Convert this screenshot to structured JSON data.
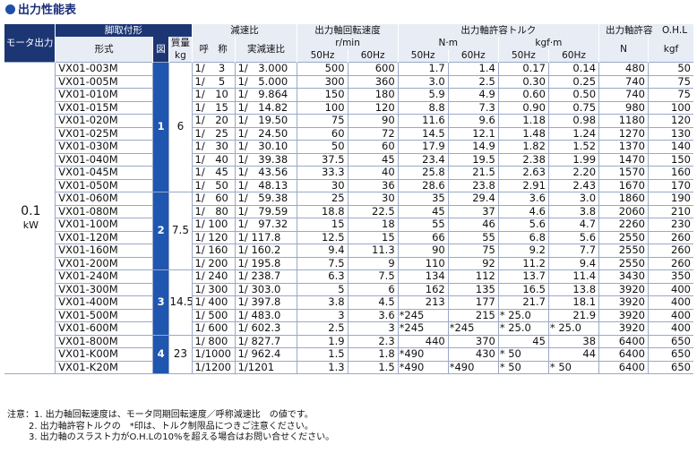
{
  "title": "出力性能表",
  "headers": {
    "motor": "モータ出力",
    "mounting": "脚取付形",
    "model": "形式",
    "fig": "図",
    "mass": "質量",
    "mass_unit": "kg",
    "reduction": "減速比",
    "nominal": "呼　称",
    "actual": "実減速比",
    "speed": "出力軸回転速度",
    "speed_unit": "r/min",
    "torque": "出力軸許容トルク",
    "torque_nm": "N·m",
    "torque_kgf": "kgf·m",
    "ohl": "出力軸許容　O.H.L",
    "ohl_n": "N",
    "ohl_kgf": "kgf",
    "hz50": "50Hz",
    "hz60": "60Hz"
  },
  "motor": {
    "value": "0.1",
    "unit": "kW"
  },
  "groups": [
    {
      "fig": "1",
      "mass": "6",
      "span": 10
    },
    {
      "fig": "2",
      "mass": "7.5",
      "span": 6
    },
    {
      "fig": "3",
      "mass": "14.5",
      "span": 5
    },
    {
      "fig": "4",
      "mass": "23",
      "span": 3
    }
  ],
  "rows": [
    [
      "VX01-003M",
      "1/　 3",
      "1/　3.000",
      "500",
      "600",
      "1.7",
      "1.4",
      "0.17",
      "0.14",
      "480",
      "50"
    ],
    [
      "VX01-005M",
      "1/　 5",
      "1/　5.000",
      "300",
      "360",
      "3.0",
      "2.5",
      "0.30",
      "0.25",
      "740",
      "75"
    ],
    [
      "VX01-010M",
      "1/　10",
      "1/　9.864",
      "150",
      "180",
      "5.9",
      "4.9",
      "0.60",
      "0.50",
      "740",
      "75"
    ],
    [
      "VX01-015M",
      "1/　15",
      "1/　14.82",
      "100",
      "120",
      "8.8",
      "7.3",
      "0.90",
      "0.75",
      "980",
      "100"
    ],
    [
      "VX01-020M",
      "1/　20",
      "1/　19.50",
      "75",
      "90",
      "11.6",
      "9.6",
      "1.18",
      "0.98",
      "1180",
      "120"
    ],
    [
      "VX01-025M",
      "1/　25",
      "1/　24.50",
      "60",
      "72",
      "14.5",
      "12.1",
      "1.48",
      "1.24",
      "1270",
      "130"
    ],
    [
      "VX01-030M",
      "1/　30",
      "1/　30.10",
      "50",
      "60",
      "17.9",
      "14.9",
      "1.82",
      "1.52",
      "1370",
      "140"
    ],
    [
      "VX01-040M",
      "1/　40",
      "1/　39.38",
      "37.5",
      "45",
      "23.4",
      "19.5",
      "2.38",
      "1.99",
      "1470",
      "150"
    ],
    [
      "VX01-045M",
      "1/　45",
      "1/　43.56",
      "33.3",
      "40",
      "25.8",
      "21.5",
      "2.63",
      "2.20",
      "1570",
      "160"
    ],
    [
      "VX01-050M",
      "1/　50",
      "1/　48.13",
      "30",
      "36",
      "28.6",
      "23.8",
      "2.91",
      "2.43",
      "1670",
      "170"
    ],
    [
      "VX01-060M",
      "1/　60",
      "1/　59.38",
      "25",
      "30",
      "35",
      "29.4",
      "3.6",
      "3.0",
      "1860",
      "190"
    ],
    [
      "VX01-080M",
      "1/　80",
      "1/　79.59",
      "18.8",
      "22.5",
      "45",
      "37",
      "4.6",
      "3.8",
      "2060",
      "210"
    ],
    [
      "VX01-100M",
      "1/ 100",
      "1/　97.32",
      "15",
      "18",
      "55",
      "46",
      "5.6",
      "4.7",
      "2260",
      "230"
    ],
    [
      "VX01-120M",
      "1/ 120",
      "1/ 117.8",
      "12.5",
      "15",
      "66",
      "55",
      "6.8",
      "5.6",
      "2550",
      "260"
    ],
    [
      "VX01-160M",
      "1/ 160",
      "1/ 160.2",
      "9.4",
      "11.3",
      "90",
      "75",
      "9.2",
      "7.7",
      "2550",
      "260"
    ],
    [
      "VX01-200M",
      "1/ 200",
      "1/ 195.8",
      "7.5",
      "9",
      "110",
      "92",
      "11.2",
      "9.4",
      "2550",
      "260"
    ],
    [
      "VX01-240M",
      "1/ 240",
      "1/ 238.7",
      "6.3",
      "7.5",
      "134",
      "112",
      "13.7",
      "11.4",
      "3430",
      "350"
    ],
    [
      "VX01-300M",
      "1/ 300",
      "1/ 303.0",
      "5",
      "6",
      "162",
      "135",
      "16.5",
      "13.8",
      "3920",
      "400"
    ],
    [
      "VX01-400M",
      "1/ 400",
      "1/ 397.8",
      "3.8",
      "4.5",
      "213",
      "177",
      "21.7",
      "18.1",
      "3920",
      "400"
    ],
    [
      "VX01-500M",
      "1/ 500",
      "1/ 483.0",
      "3",
      "3.6",
      "*245",
      "215",
      "* 25.0",
      "21.9",
      "3920",
      "400"
    ],
    [
      "VX01-600M",
      "1/ 600",
      "1/ 602.3",
      "2.5",
      "3",
      "*245",
      "*245",
      "* 25.0",
      "* 25.0",
      "3920",
      "400"
    ],
    [
      "VX01-800M",
      "1/ 800",
      "1/ 827.7",
      "1.9",
      "2.3",
      "440",
      "370",
      "45",
      "38",
      "6400",
      "650"
    ],
    [
      "VX01-K00M",
      "1/1000",
      "1/ 962.4",
      "1.5",
      "1.8",
      "*490",
      "430",
      "* 50",
      "44",
      "6400",
      "650"
    ],
    [
      "VX01-K20M",
      "1/1200",
      "1/1201",
      "1.3",
      "1.5",
      "*490",
      "*490",
      "* 50",
      "* 50",
      "6400",
      "650"
    ]
  ],
  "notes": [
    "注意：1. 出力軸回転速度は、モータ同期回転速度／呼称減速比　の値です。",
    "2. 出力軸許容トルクの　*印は、トルク制限品につきご注意ください。",
    "3. 出力軸のスラスト力がO.H.Lの10%を超える場合はお問い合せください。"
  ]
}
